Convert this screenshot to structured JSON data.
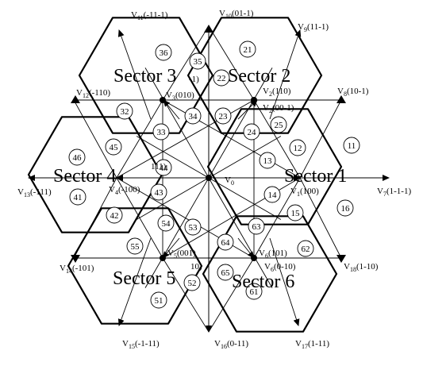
{
  "diagram": {
    "sector_labels": [
      "Sector 1",
      "Sector 2",
      "Sector 3",
      "Sector 4",
      "Sector 5",
      "Sector 6"
    ],
    "center_label": {
      "main": "V",
      "sub": "0"
    },
    "vectors": [
      {
        "main": "V",
        "sub": "1",
        "code": "(100)"
      },
      {
        "main": "V",
        "sub": "2",
        "code": "(110)"
      },
      {
        "main": "V",
        "sub": "3",
        "code": "(010)"
      },
      {
        "main": "V",
        "sub": "4",
        "code": "(-100)"
      },
      {
        "main": "V",
        "sub": "5",
        "code": "(001)"
      },
      {
        "main": "V",
        "sub": "6",
        "code": "(101)"
      },
      {
        "main": "V",
        "sub": "7",
        "code": "(1-1-1)"
      },
      {
        "main": "V",
        "sub": "8",
        "code": "(10-1)"
      },
      {
        "main": "V",
        "sub": "9",
        "code": "(11-1)"
      },
      {
        "main": "V",
        "sub": "10",
        "code": "(01-1)"
      },
      {
        "main": "V",
        "sub": "11",
        "code": "(-11-1)"
      },
      {
        "main": "V",
        "sub": "12",
        "code": "(-110)"
      },
      {
        "main": "V",
        "sub": "13",
        "code": "(-111)"
      },
      {
        "main": "V",
        "sub": "14",
        "code": "(-101)"
      },
      {
        "main": "V",
        "sub": "15",
        "code": "(-1-11)"
      },
      {
        "main": "V",
        "sub": "16",
        "code": "(0-11)"
      },
      {
        "main": "V",
        "sub": "17",
        "code": "(1-11)"
      },
      {
        "main": "V",
        "sub": "18",
        "code": "(1-10)"
      },
      {
        "main": "V",
        "sub": "2",
        "code": "(00-1)"
      },
      {
        "main": "V",
        "sub": "6",
        "code": "(0-10)"
      }
    ],
    "regions": [
      "11",
      "12",
      "13",
      "14",
      "15",
      "16",
      "21",
      "22",
      "23",
      "24",
      "25",
      "32",
      "33",
      "34",
      "35",
      "36",
      "41",
      "42",
      "43",
      "44",
      "45",
      "46",
      "51",
      "52",
      "53",
      "54",
      "55",
      "61",
      "62",
      "63",
      "64",
      "65"
    ],
    "fragments": [
      "-1)",
      "111)",
      "10)",
      "(00"
    ]
  }
}
